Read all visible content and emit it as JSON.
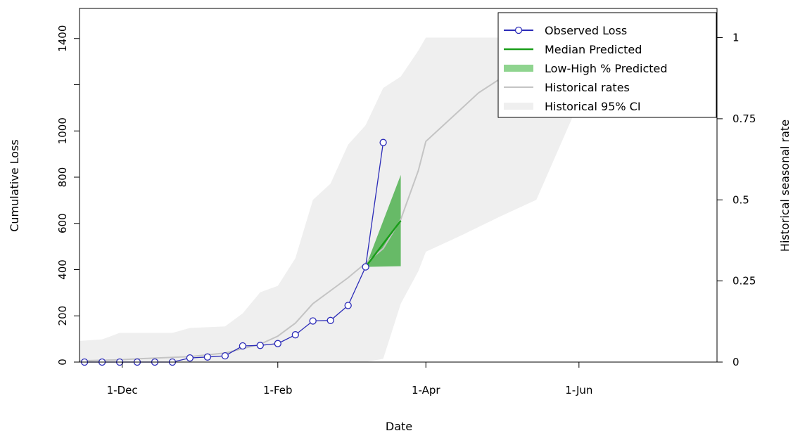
{
  "chart_data": {
    "type": "line",
    "xlabel": "Date",
    "ylabel": "Cumulative Loss",
    "y2label": "Historical seasonal rate",
    "x_axis": {
      "type": "date",
      "range": [
        "2014-11-14",
        "2015-07-26"
      ],
      "ticks": [
        {
          "date": "2014-12-01",
          "label": "1-Dec"
        },
        {
          "date": "2015-02-01",
          "label": "1-Feb"
        },
        {
          "date": "2015-04-01",
          "label": "1-Apr"
        },
        {
          "date": "2015-06-01",
          "label": "1-Jun"
        }
      ]
    },
    "y_axis": {
      "range": [
        0,
        1530
      ],
      "ticks": [
        {
          "value": 0,
          "label": "0"
        },
        {
          "value": 200,
          "label": "200"
        },
        {
          "value": 400,
          "label": "400"
        },
        {
          "value": 600,
          "label": "600"
        },
        {
          "value": 800,
          "label": "800"
        },
        {
          "value": 1000,
          "label": "1000"
        },
        {
          "value": 1400,
          "label": "1400"
        }
      ],
      "unlabeled_ticks": [
        1200
      ]
    },
    "y2_axis": {
      "range": [
        0,
        1.09
      ],
      "ticks": [
        {
          "value": 0,
          "label": "0"
        },
        {
          "value": 0.25,
          "label": "0.25"
        },
        {
          "value": 0.5,
          "label": "0.5"
        },
        {
          "value": 0.75,
          "label": "0.75"
        },
        {
          "value": 1,
          "label": "1"
        }
      ]
    },
    "grid": false,
    "legend": {
      "position": "top-right",
      "entries": [
        {
          "label": "Observed Loss",
          "color": "#2b2bb8",
          "style": "line-circle"
        },
        {
          "label": "Median Predicted",
          "color": "#1a9e1a",
          "style": "line"
        },
        {
          "label": "Low-High % Predicted",
          "color": "#8fd48f",
          "style": "thick-line"
        },
        {
          "label": "Historical rates",
          "color": "#c4c4c4",
          "style": "line"
        },
        {
          "label": "Historical 95% CI",
          "color": "#efefef",
          "style": "thick-line"
        }
      ]
    },
    "series": [
      {
        "name": "Observed Loss",
        "axis": "left",
        "color": "#2b2bb8",
        "points": [
          {
            "x": "2014-11-16",
            "y": 0
          },
          {
            "x": "2014-11-23",
            "y": 0
          },
          {
            "x": "2014-11-30",
            "y": 0
          },
          {
            "x": "2014-12-07",
            "y": 0
          },
          {
            "x": "2014-12-14",
            "y": 0
          },
          {
            "x": "2014-12-21",
            "y": 0
          },
          {
            "x": "2014-12-28",
            "y": 18
          },
          {
            "x": "2015-01-04",
            "y": 22
          },
          {
            "x": "2015-01-11",
            "y": 27
          },
          {
            "x": "2015-01-18",
            "y": 70
          },
          {
            "x": "2015-01-25",
            "y": 72
          },
          {
            "x": "2015-02-01",
            "y": 80
          },
          {
            "x": "2015-02-08",
            "y": 118
          },
          {
            "x": "2015-02-15",
            "y": 178
          },
          {
            "x": "2015-02-22",
            "y": 180
          },
          {
            "x": "2015-03-01",
            "y": 245
          },
          {
            "x": "2015-03-08",
            "y": 412
          },
          {
            "x": "2015-03-15",
            "y": 950
          }
        ]
      },
      {
        "name": "Median Predicted",
        "axis": "left",
        "color": "#1a9e1a",
        "points": [
          {
            "x": "2015-03-08",
            "y": 412
          },
          {
            "x": "2015-03-22",
            "y": 612
          }
        ]
      },
      {
        "name": "Low-High % Predicted",
        "axis": "left",
        "color": "#8fd48f",
        "band": [
          {
            "x": "2015-03-08",
            "low": 412,
            "high": 412
          },
          {
            "x": "2015-03-22",
            "low": 415,
            "high": 810
          }
        ]
      },
      {
        "name": "Historical rates",
        "axis": "right",
        "color": "#c4c4c4",
        "points": [
          {
            "x": "2014-11-14",
            "y": 0.004
          },
          {
            "x": "2014-11-30",
            "y": 0.007
          },
          {
            "x": "2014-12-07",
            "y": 0.01
          },
          {
            "x": "2014-12-28",
            "y": 0.017
          },
          {
            "x": "2015-01-11",
            "y": 0.028
          },
          {
            "x": "2015-01-25",
            "y": 0.055
          },
          {
            "x": "2015-02-01",
            "y": 0.08
          },
          {
            "x": "2015-02-08",
            "y": 0.12
          },
          {
            "x": "2015-02-15",
            "y": 0.18
          },
          {
            "x": "2015-02-22",
            "y": 0.22
          },
          {
            "x": "2015-03-01",
            "y": 0.26
          },
          {
            "x": "2015-03-08",
            "y": 0.305
          },
          {
            "x": "2015-03-15",
            "y": 0.35
          },
          {
            "x": "2015-03-22",
            "y": 0.44
          },
          {
            "x": "2015-03-29",
            "y": 0.59
          },
          {
            "x": "2015-04-01",
            "y": 0.68
          },
          {
            "x": "2015-04-08",
            "y": 0.73
          },
          {
            "x": "2015-04-15",
            "y": 0.78
          },
          {
            "x": "2015-04-22",
            "y": 0.83
          },
          {
            "x": "2015-05-01",
            "y": 0.875
          },
          {
            "x": "2015-05-15",
            "y": 0.92
          },
          {
            "x": "2015-06-01",
            "y": 0.96
          },
          {
            "x": "2015-07-26",
            "y": 0.99
          }
        ]
      },
      {
        "name": "Historical 95% CI",
        "axis": "right",
        "color": "#efefef",
        "band": [
          {
            "x": "2014-11-14",
            "low": 0,
            "high": 0.065
          },
          {
            "x": "2014-11-23",
            "low": 0,
            "high": 0.07
          },
          {
            "x": "2014-11-30",
            "low": 0,
            "high": 0.09
          },
          {
            "x": "2014-12-21",
            "low": 0,
            "high": 0.09
          },
          {
            "x": "2014-12-28",
            "low": 0,
            "high": 0.105
          },
          {
            "x": "2015-01-11",
            "low": 0,
            "high": 0.11
          },
          {
            "x": "2015-01-18",
            "low": 0,
            "high": 0.15
          },
          {
            "x": "2015-01-25",
            "low": 0,
            "high": 0.215
          },
          {
            "x": "2015-02-01",
            "low": 0,
            "high": 0.235
          },
          {
            "x": "2015-02-08",
            "low": 0,
            "high": 0.32
          },
          {
            "x": "2015-02-15",
            "low": 0,
            "high": 0.5
          },
          {
            "x": "2015-02-22",
            "low": 0,
            "high": 0.55
          },
          {
            "x": "2015-03-01",
            "low": 0,
            "high": 0.67
          },
          {
            "x": "2015-03-08",
            "low": 0,
            "high": 0.73
          },
          {
            "x": "2015-03-15",
            "low": 0.01,
            "high": 0.845
          },
          {
            "x": "2015-03-22",
            "low": 0.18,
            "high": 0.88
          },
          {
            "x": "2015-03-29",
            "low": 0.28,
            "high": 0.96
          },
          {
            "x": "2015-04-01",
            "low": 0.34,
            "high": 1.0
          },
          {
            "x": "2015-04-15",
            "low": 0.39,
            "high": 1.0
          },
          {
            "x": "2015-05-01",
            "low": 0.45,
            "high": 1.0
          },
          {
            "x": "2015-05-15",
            "low": 0.5,
            "high": 1.0
          },
          {
            "x": "2015-06-01",
            "low": 0.8,
            "high": 1.0
          },
          {
            "x": "2015-07-26",
            "low": 0.86,
            "high": 1.0
          }
        ]
      }
    ]
  }
}
